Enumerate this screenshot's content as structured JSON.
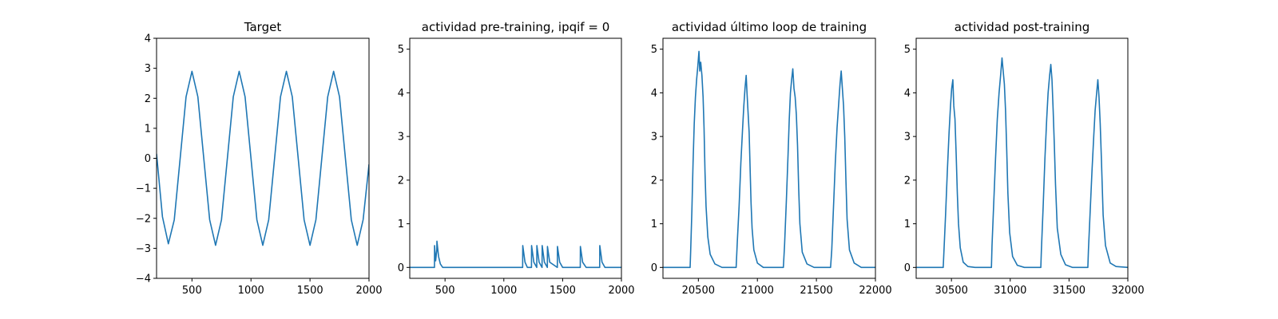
{
  "chart_data": [
    {
      "type": "line",
      "title": "Target",
      "xlabel": "",
      "ylabel": "",
      "xlim": [
        200,
        2000
      ],
      "ylim": [
        -4,
        4
      ],
      "xticks": [
        500,
        1000,
        1500,
        2000
      ],
      "xtick_labels": [
        "500",
        "1000",
        "1500",
        "2000"
      ],
      "yticks": [
        -4,
        -3,
        -2,
        -1,
        0,
        1,
        2,
        3,
        4
      ],
      "ytick_labels": [
        "−4",
        "−3",
        "−2",
        "−1",
        "0",
        "1",
        "2",
        "3",
        "4"
      ],
      "grid": false,
      "series": [
        {
          "x": [
            200,
            250,
            300,
            350,
            400,
            450,
            500,
            550,
            600,
            650,
            700,
            750,
            800,
            850,
            900,
            950,
            1000,
            1050,
            1100,
            1150,
            1200,
            1250,
            1300,
            1350,
            1400,
            1450,
            1500,
            1550,
            1600,
            1650,
            1700,
            1750,
            1800,
            1850,
            1900,
            1950,
            2000
          ],
          "y": [
            0.15,
            -1.95,
            -2.85,
            -2.05,
            0,
            2.05,
            2.9,
            2.05,
            0,
            -2.05,
            -2.9,
            -2.05,
            0,
            2.05,
            2.9,
            2.05,
            0,
            -2.05,
            -2.9,
            -2.05,
            0,
            2.05,
            2.9,
            2.05,
            0,
            -2.05,
            -2.9,
            -2.05,
            0,
            2.05,
            2.9,
            2.05,
            0,
            -2.05,
            -2.9,
            -2.05,
            -0.2
          ]
        }
      ]
    },
    {
      "type": "line",
      "title": "actividad pre-training, ipqif = 0",
      "xlabel": "",
      "ylabel": "",
      "xlim": [
        200,
        2000
      ],
      "ylim": [
        -0.25,
        5.25
      ],
      "xticks": [
        500,
        1000,
        1500,
        2000
      ],
      "xtick_labels": [
        "500",
        "1000",
        "1500",
        "2000"
      ],
      "yticks": [
        0,
        1,
        2,
        3,
        4,
        5
      ],
      "ytick_labels": [
        "0",
        "1",
        "2",
        "3",
        "4",
        "5"
      ],
      "grid": false,
      "series": [
        {
          "x": [
            200,
            410,
            411,
            420,
            430,
            431,
            445,
            460,
            480,
            1160,
            1161,
            1180,
            1200,
            1235,
            1236,
            1255,
            1280,
            1281,
            1300,
            1325,
            1326,
            1345,
            1370,
            1371,
            1390,
            1455,
            1456,
            1475,
            1500,
            1650,
            1651,
            1670,
            1700,
            1815,
            1816,
            1835,
            1860,
            2000
          ],
          "y": [
            0,
            0,
            0.5,
            0.15,
            0.4,
            0.6,
            0.25,
            0.08,
            0,
            0,
            0.5,
            0.12,
            0,
            0,
            0.5,
            0.12,
            0,
            0.5,
            0.12,
            0,
            0.5,
            0.12,
            0,
            0.48,
            0.12,
            0,
            0.48,
            0.12,
            0,
            0,
            0.48,
            0.12,
            0,
            0,
            0.5,
            0.12,
            0,
            0
          ]
        }
      ]
    },
    {
      "type": "line",
      "title": "actividad último loop de training",
      "xlabel": "",
      "ylabel": "",
      "xlim": [
        20200,
        22000
      ],
      "ylim": [
        -0.25,
        5.25
      ],
      "xticks": [
        20500,
        21000,
        21500,
        22000
      ],
      "xtick_labels": [
        "20500",
        "21000",
        "21500",
        "22000"
      ],
      "yticks": [
        0,
        1,
        2,
        3,
        4,
        5
      ],
      "ytick_labels": [
        "0",
        "1",
        "2",
        "3",
        "4",
        "5"
      ],
      "grid": false,
      "series": [
        {
          "x": [
            20200,
            20430,
            20435,
            20445,
            20455,
            20465,
            20475,
            20485,
            20495,
            20505,
            20512,
            20520,
            20530,
            20540,
            20548,
            20556,
            20565,
            20580,
            20600,
            20640,
            20700,
            20820,
            20830,
            20845,
            20860,
            20875,
            20885,
            20895,
            20905,
            20912,
            20920,
            20930,
            20938,
            20946,
            20955,
            20970,
            21000,
            21050,
            21100,
            21220,
            21230,
            21245,
            21260,
            21270,
            21280,
            21290,
            21300,
            21310,
            21320,
            21330,
            21340,
            21350,
            21360,
            21380,
            21420,
            21480,
            21620,
            21630,
            21645,
            21660,
            21675,
            21690,
            21700,
            21710,
            21720,
            21730,
            21740,
            21750,
            21760,
            21780,
            21820,
            21880,
            22000
          ],
          "y": [
            0,
            0,
            0.4,
            1.3,
            2.4,
            3.3,
            3.9,
            4.3,
            4.6,
            4.95,
            4.5,
            4.7,
            4.4,
            3.9,
            3.2,
            2.2,
            1.4,
            0.7,
            0.3,
            0.08,
            0,
            0,
            0.6,
            1.4,
            2.4,
            3.2,
            3.7,
            4.1,
            4.4,
            4.0,
            3.6,
            3.1,
            2.3,
            1.5,
            0.9,
            0.4,
            0.1,
            0,
            0,
            0,
            0.5,
            1.5,
            2.6,
            3.4,
            4.0,
            4.3,
            4.55,
            4.1,
            3.9,
            3.5,
            2.8,
            1.8,
            1.0,
            0.35,
            0.08,
            0,
            0,
            0.4,
            1.4,
            2.4,
            3.2,
            3.8,
            4.2,
            4.5,
            4.1,
            3.7,
            3.0,
            2.0,
            1.1,
            0.4,
            0.1,
            0,
            0
          ]
        }
      ]
    },
    {
      "type": "line",
      "title": "actividad post-training",
      "xlabel": "",
      "ylabel": "",
      "xlim": [
        30200,
        32000
      ],
      "ylim": [
        -0.25,
        5.25
      ],
      "xticks": [
        30500,
        31000,
        31500,
        32000
      ],
      "xtick_labels": [
        "30500",
        "31000",
        "31500",
        "32000"
      ],
      "yticks": [
        0,
        1,
        2,
        3,
        4,
        5
      ],
      "ytick_labels": [
        "0",
        "1",
        "2",
        "3",
        "4",
        "5"
      ],
      "grid": false,
      "series": [
        {
          "x": [
            30200,
            30430,
            30435,
            30450,
            30465,
            30480,
            30492,
            30502,
            30512,
            30520,
            30530,
            30540,
            30550,
            30560,
            30575,
            30600,
            30640,
            30700,
            30840,
            30845,
            30860,
            30875,
            30890,
            30905,
            30918,
            30930,
            30940,
            30950,
            30960,
            30970,
            30980,
            30995,
            31020,
            31060,
            31120,
            31260,
            31265,
            31280,
            31295,
            31310,
            31322,
            31335,
            31345,
            31355,
            31365,
            31375,
            31385,
            31400,
            31430,
            31470,
            31530,
            31660,
            31665,
            31680,
            31695,
            31710,
            31722,
            31735,
            31745,
            31755,
            31765,
            31775,
            31790,
            31810,
            31850,
            31900,
            32000
          ],
          "y": [
            0,
            0,
            0.3,
            1.2,
            2.2,
            3.1,
            3.7,
            4.1,
            4.3,
            3.7,
            3.4,
            2.6,
            1.7,
            1.0,
            0.45,
            0.12,
            0.02,
            0,
            0,
            0.5,
            1.5,
            2.5,
            3.4,
            4.0,
            4.4,
            4.8,
            4.5,
            4.2,
            3.6,
            2.7,
            1.7,
            0.8,
            0.25,
            0.05,
            0,
            0,
            0.4,
            1.4,
            2.5,
            3.4,
            4.0,
            4.4,
            4.65,
            4.3,
            3.6,
            2.8,
            1.9,
            0.9,
            0.3,
            0.06,
            0,
            0,
            0.4,
            1.3,
            2.2,
            3.0,
            3.6,
            4.0,
            4.3,
            3.9,
            3.3,
            2.5,
            1.2,
            0.5,
            0.1,
            0.02,
            0
          ]
        }
      ]
    }
  ]
}
